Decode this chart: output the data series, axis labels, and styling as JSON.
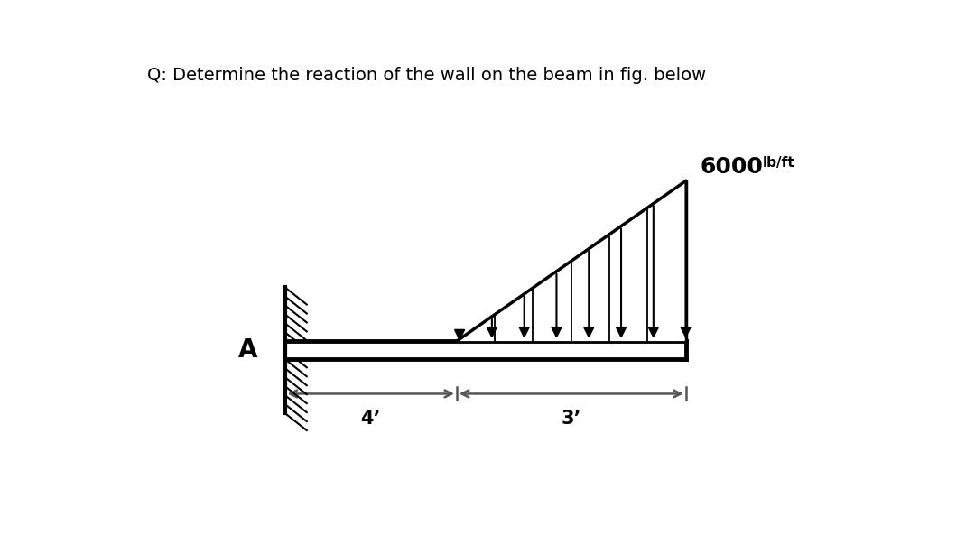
{
  "title": "Q: Determine the reaction of the wall on the beam in fig. below",
  "title_fontsize": 14,
  "load_label": "6000",
  "load_unit": "lb/ft",
  "dim1_label": "4’",
  "dim2_label": "3’",
  "background_color": "#ffffff",
  "beam_color": "#000000",
  "wall_x": 2.0,
  "beam_start": 2.0,
  "beam_end": 9.0,
  "load_start": 5.0,
  "load_end": 9.0,
  "max_load_height": 2.8,
  "beam_y": 0.0,
  "beam_thickness": 0.32,
  "xlim": [
    -0.5,
    12.0
  ],
  "ylim": [
    -2.2,
    5.0
  ]
}
